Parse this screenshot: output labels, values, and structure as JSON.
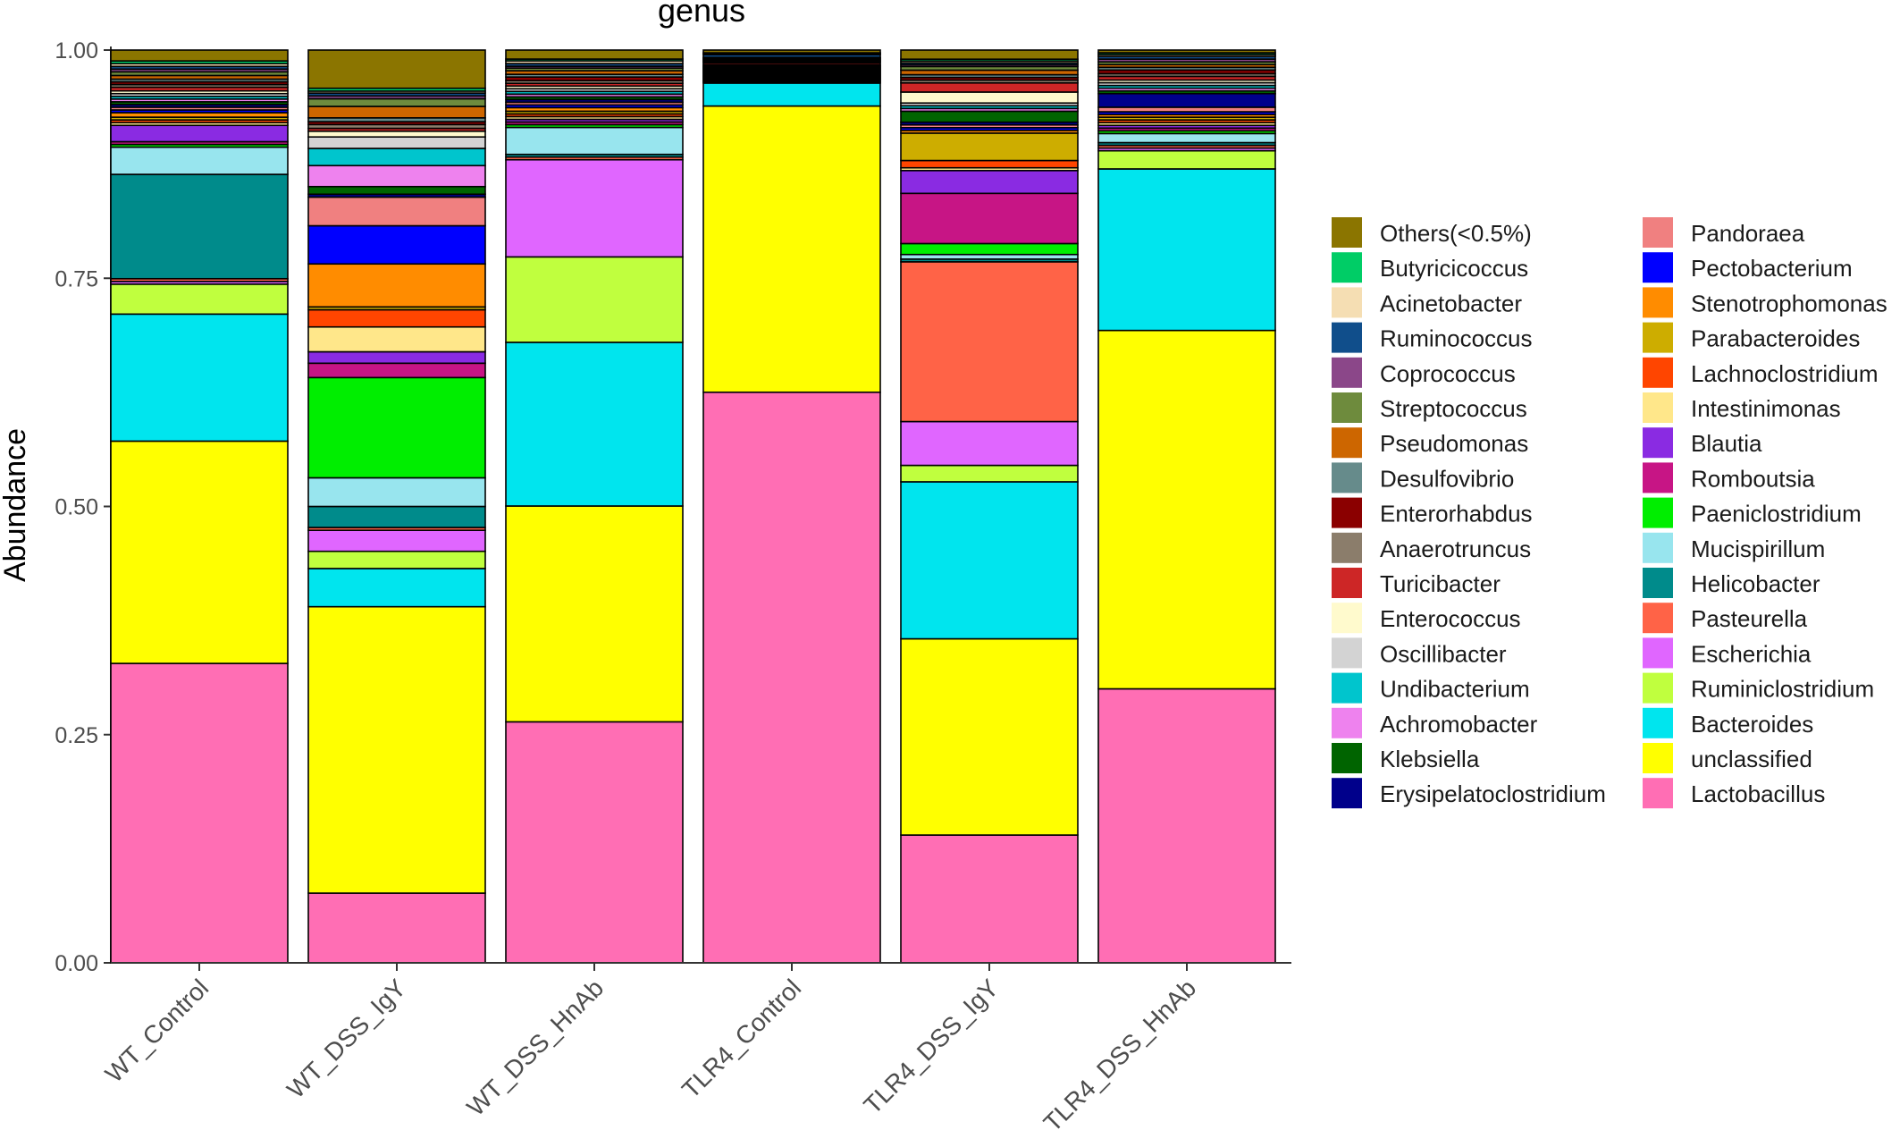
{
  "chart_data": {
    "type": "bar",
    "stacked": true,
    "title": "genus",
    "xlabel": "",
    "ylabel": "Abundance",
    "ylim": [
      0,
      1
    ],
    "yticks": [
      "0.00",
      "0.25",
      "0.50",
      "0.75",
      "1.00"
    ],
    "categories": [
      "WT_Control",
      "WT_DSS_IgY",
      "WT_DSS_HnAb",
      "TLR4_Control",
      "TLR4_DSS_IgY",
      "TLR4_DSS_HnAb"
    ],
    "stack_order_bottom_to_top": [
      "Lactobacillus",
      "unclassified",
      "Bacteroides",
      "Ruminiclostridium",
      "Escherichia",
      "Pasteurella",
      "Helicobacter",
      "Mucispirillum",
      "Paeniclostridium",
      "Romboutsia",
      "Blautia",
      "Intestinimonas",
      "Lachnoclostridium",
      "Parabacteroides",
      "Stenotrophomonas",
      "Pectobacterium",
      "Pandoraea",
      "Erysipelatoclostridium",
      "Klebsiella",
      "Achromobacter",
      "Undibacterium",
      "Oscillibacter",
      "Enterococcus",
      "Turicibacter",
      "Anaerotruncus",
      "Enterorhabdus",
      "Desulfovibrio",
      "Pseudomonas",
      "Streptococcus",
      "Coprococcus",
      "Ruminococcus",
      "Acinetobacter",
      "Butyricicoccus",
      "Others(<0.5%)"
    ],
    "series": [
      {
        "name": "Others(<0.5%)",
        "color": "#8B7500",
        "values": [
          0.012,
          0.04,
          0.01,
          0.003,
          0.01,
          0.003
        ]
      },
      {
        "name": "Butyricicoccus",
        "color": "#00CD66",
        "values": [
          0.003,
          0.003,
          0.002,
          0.001,
          0.002,
          0.002
        ]
      },
      {
        "name": "Acinetobacter",
        "color": "#F5DEB3",
        "values": [
          0.003,
          0.002,
          0.003,
          0.001,
          0.002,
          0.002
        ]
      },
      {
        "name": "Ruminococcus",
        "color": "#104E8B",
        "values": [
          0.003,
          0.003,
          0.003,
          0.003,
          0.002,
          0.003
        ]
      },
      {
        "name": "Coprococcus",
        "color": "#8B4789",
        "values": [
          0.003,
          0.003,
          0.002,
          0.001,
          0.002,
          0.003
        ]
      },
      {
        "name": "Streptococcus",
        "color": "#6E8B3D",
        "values": [
          0.004,
          0.008,
          0.003,
          0.001,
          0.004,
          0.003
        ]
      },
      {
        "name": "Pseudomonas",
        "color": "#CD6600",
        "values": [
          0.004,
          0.012,
          0.004,
          0.001,
          0.005,
          0.003
        ]
      },
      {
        "name": "Desulfovibrio",
        "color": "#668B8B",
        "values": [
          0.003,
          0.004,
          0.003,
          0.001,
          0.003,
          0.003
        ]
      },
      {
        "name": "Enterorhabdus",
        "color": "#8B0000",
        "values": [
          0.003,
          0.003,
          0.004,
          0.001,
          0.003,
          0.004
        ]
      },
      {
        "name": "Anaerotruncus",
        "color": "#8B7D6B",
        "values": [
          0.003,
          0.004,
          0.003,
          0.001,
          0.003,
          0.003
        ]
      },
      {
        "name": "Turicibacter",
        "color": "#CD2626",
        "values": [
          0.004,
          0.003,
          0.003,
          0.002,
          0.01,
          0.004
        ]
      },
      {
        "name": "Enterococcus",
        "color": "#FFFACD",
        "values": [
          0.003,
          0.006,
          0.003,
          0.001,
          0.012,
          0.003
        ]
      },
      {
        "name": "Oscillibacter",
        "color": "#D3D3D3",
        "values": [
          0.003,
          0.012,
          0.003,
          0.001,
          0.003,
          0.003
        ]
      },
      {
        "name": "Undibacterium",
        "color": "#00C5CD",
        "values": [
          0.003,
          0.018,
          0.003,
          0.001,
          0.003,
          0.003
        ]
      },
      {
        "name": "Achromobacter",
        "color": "#EE82EE",
        "values": [
          0.003,
          0.022,
          0.003,
          0.001,
          0.003,
          0.003
        ]
      },
      {
        "name": "Klebsiella",
        "color": "#006400",
        "values": [
          0.003,
          0.008,
          0.003,
          0.001,
          0.012,
          0.003
        ]
      },
      {
        "name": "Erysipelatoclostridium",
        "color": "#00008B",
        "values": [
          0.003,
          0.003,
          0.003,
          0.001,
          0.003,
          0.015
        ]
      },
      {
        "name": "Pandoraea",
        "color": "#F08080",
        "values": [
          0.003,
          0.03,
          0.003,
          0.001,
          0.003,
          0.005
        ]
      },
      {
        "name": "Pectobacterium",
        "color": "#0000FF",
        "values": [
          0.003,
          0.04,
          0.003,
          0.001,
          0.003,
          0.003
        ]
      },
      {
        "name": "Stenotrophomonas",
        "color": "#FF8C00",
        "values": [
          0.005,
          0.045,
          0.004,
          0.001,
          0.003,
          0.003
        ]
      },
      {
        "name": "Parabacteroides",
        "color": "#CDAD00",
        "values": [
          0.003,
          0.003,
          0.003,
          0.001,
          0.03,
          0.003
        ]
      },
      {
        "name": "Lachnoclostridium",
        "color": "#FF4500",
        "values": [
          0.003,
          0.018,
          0.003,
          0.001,
          0.008,
          0.003
        ]
      },
      {
        "name": "Intestinimonas",
        "color": "#FFE78A",
        "values": [
          0.003,
          0.026,
          0.003,
          0.001,
          0.003,
          0.003
        ]
      },
      {
        "name": "Blautia",
        "color": "#8A2BE2",
        "values": [
          0.018,
          0.012,
          0.003,
          0.001,
          0.025,
          0.003
        ]
      },
      {
        "name": "Romboutsia",
        "color": "#C71585",
        "values": [
          0.003,
          0.015,
          0.003,
          0.001,
          0.055,
          0.003
        ]
      },
      {
        "name": "Paeniclostridium",
        "color": "#00EE00",
        "values": [
          0.003,
          0.105,
          0.003,
          0.001,
          0.012,
          0.003
        ]
      },
      {
        "name": "Mucispirillum",
        "color": "#98E5EE",
        "values": [
          0.03,
          0.03,
          0.03,
          0.001,
          0.005,
          0.01
        ]
      },
      {
        "name": "Helicobacter",
        "color": "#008B8B",
        "values": [
          0.115,
          0.022,
          0.003,
          0.001,
          0.003,
          0.003
        ]
      },
      {
        "name": "Pasteurella",
        "color": "#FF6347",
        "values": [
          0.003,
          0.003,
          0.003,
          0.001,
          0.175,
          0.003
        ]
      },
      {
        "name": "Escherichia",
        "color": "#E066FF",
        "values": [
          0.003,
          0.022,
          0.108,
          0.001,
          0.048,
          0.003
        ]
      },
      {
        "name": "Ruminiclostridium",
        "color": "#C0FF3E",
        "values": [
          0.033,
          0.018,
          0.095,
          0.001,
          0.018,
          0.02
        ]
      },
      {
        "name": "Bacteroides",
        "color": "#00E5EE",
        "values": [
          0.14,
          0.04,
          0.182,
          0.025,
          0.172,
          0.178
        ]
      },
      {
        "name": "unclassified",
        "color": "#FFFF00",
        "values": [
          0.245,
          0.3,
          0.24,
          0.312,
          0.215,
          0.395
        ]
      },
      {
        "name": "Lactobacillus",
        "color": "#FF6EB4",
        "values": [
          0.33,
          0.073,
          0.268,
          0.622,
          0.14,
          0.302
        ]
      }
    ]
  }
}
